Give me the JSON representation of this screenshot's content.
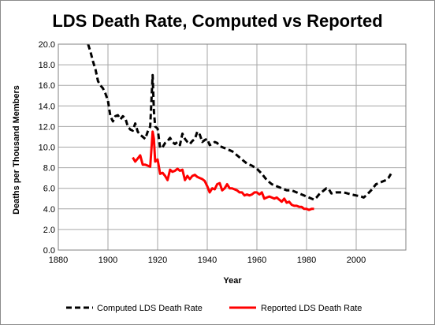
{
  "chart_data": {
    "type": "line",
    "title": "LDS Death Rate, Computed vs Reported",
    "xlabel": "Year",
    "ylabel": "Deaths per Thousand  Members",
    "xlim": [
      1880,
      2020
    ],
    "ylim": [
      0,
      20
    ],
    "x_ticks": [
      "1880",
      "1900",
      "1920",
      "1940",
      "1960",
      "1980",
      "2000"
    ],
    "y_ticks": [
      "0.0",
      "2.0",
      "4.0",
      "6.0",
      "8.0",
      "10.0",
      "12.0",
      "14.0",
      "16.0",
      "18.0",
      "20.0"
    ],
    "grid": "both",
    "legend_position": "bottom",
    "series": [
      {
        "name": "Computed LDS Death Rate",
        "color": "#000000",
        "style": "dashed",
        "points": [
          [
            1892,
            20.0
          ],
          [
            1893,
            19.2
          ],
          [
            1894,
            18.3
          ],
          [
            1895,
            17.5
          ],
          [
            1896,
            16.4
          ],
          [
            1897,
            16.0
          ],
          [
            1898,
            15.7
          ],
          [
            1899,
            15.2
          ],
          [
            1900,
            14.5
          ],
          [
            1901,
            13.0
          ],
          [
            1902,
            12.5
          ],
          [
            1903,
            13.0
          ],
          [
            1904,
            13.1
          ],
          [
            1905,
            12.7
          ],
          [
            1906,
            13.0
          ],
          [
            1907,
            12.8
          ],
          [
            1908,
            12.0
          ],
          [
            1909,
            11.7
          ],
          [
            1910,
            11.6
          ],
          [
            1911,
            12.3
          ],
          [
            1912,
            11.5
          ],
          [
            1913,
            11.2
          ],
          [
            1914,
            11.0
          ],
          [
            1915,
            10.8
          ],
          [
            1916,
            11.5
          ],
          [
            1917,
            12.0
          ],
          [
            1918,
            17.0
          ],
          [
            1918.5,
            13.5
          ],
          [
            1919,
            12.0
          ],
          [
            1920,
            11.8
          ],
          [
            1921,
            9.9
          ],
          [
            1922,
            10.0
          ],
          [
            1923,
            10.4
          ],
          [
            1924,
            10.6
          ],
          [
            1925,
            10.9
          ],
          [
            1926,
            10.5
          ],
          [
            1927,
            10.3
          ],
          [
            1928,
            10.5
          ],
          [
            1929,
            10.2
          ],
          [
            1930,
            11.3
          ],
          [
            1931,
            10.8
          ],
          [
            1932,
            10.5
          ],
          [
            1933,
            10.3
          ],
          [
            1934,
            10.6
          ],
          [
            1935,
            10.8
          ],
          [
            1936,
            11.5
          ],
          [
            1937,
            11.2
          ],
          [
            1938,
            10.5
          ],
          [
            1939,
            10.7
          ],
          [
            1940,
            10.8
          ],
          [
            1941,
            10.2
          ],
          [
            1942,
            10.3
          ],
          [
            1943,
            10.5
          ],
          [
            1944,
            10.4
          ],
          [
            1945,
            10.1
          ],
          [
            1946,
            10.0
          ],
          [
            1948,
            9.8
          ],
          [
            1950,
            9.6
          ],
          [
            1952,
            9.2
          ],
          [
            1954,
            8.8
          ],
          [
            1956,
            8.4
          ],
          [
            1958,
            8.2
          ],
          [
            1960,
            7.9
          ],
          [
            1962,
            7.4
          ],
          [
            1964,
            6.8
          ],
          [
            1966,
            6.4
          ],
          [
            1968,
            6.2
          ],
          [
            1970,
            6.0
          ],
          [
            1972,
            5.8
          ],
          [
            1974,
            5.8
          ],
          [
            1976,
            5.6
          ],
          [
            1978,
            5.4
          ],
          [
            1980,
            5.2
          ],
          [
            1982,
            5.0
          ],
          [
            1983,
            4.9
          ],
          [
            1984,
            5.1
          ],
          [
            1985,
            5.4
          ],
          [
            1987,
            5.8
          ],
          [
            1988,
            6.0
          ],
          [
            1989,
            5.9
          ],
          [
            1990,
            5.5
          ],
          [
            1992,
            5.6
          ],
          [
            1995,
            5.6
          ],
          [
            1998,
            5.4
          ],
          [
            2000,
            5.3
          ],
          [
            2002,
            5.2
          ],
          [
            2003,
            5.1
          ],
          [
            2004,
            5.3
          ],
          [
            2006,
            5.8
          ],
          [
            2008,
            6.4
          ],
          [
            2010,
            6.6
          ],
          [
            2012,
            6.8
          ],
          [
            2013,
            7.0
          ],
          [
            2014,
            7.4
          ]
        ]
      },
      {
        "name": "Reported LDS Death Rate",
        "color": "#ff0000",
        "style": "solid",
        "points": [
          [
            1910,
            9.0
          ],
          [
            1911,
            8.6
          ],
          [
            1912,
            8.9
          ],
          [
            1913,
            9.2
          ],
          [
            1914,
            8.3
          ],
          [
            1915,
            8.3
          ],
          [
            1916,
            8.2
          ],
          [
            1917,
            8.1
          ],
          [
            1918,
            11.5
          ],
          [
            1918.5,
            10.8
          ],
          [
            1919,
            8.6
          ],
          [
            1920,
            8.8
          ],
          [
            1921,
            7.4
          ],
          [
            1922,
            7.5
          ],
          [
            1923,
            7.2
          ],
          [
            1924,
            6.8
          ],
          [
            1925,
            7.8
          ],
          [
            1926,
            7.6
          ],
          [
            1927,
            7.7
          ],
          [
            1928,
            7.9
          ],
          [
            1929,
            7.7
          ],
          [
            1930,
            7.8
          ],
          [
            1931,
            6.8
          ],
          [
            1932,
            7.2
          ],
          [
            1933,
            6.9
          ],
          [
            1934,
            7.2
          ],
          [
            1935,
            7.3
          ],
          [
            1936,
            7.1
          ],
          [
            1937,
            7.0
          ],
          [
            1938,
            6.9
          ],
          [
            1939,
            6.7
          ],
          [
            1940,
            6.2
          ],
          [
            1941,
            5.6
          ],
          [
            1942,
            6.0
          ],
          [
            1943,
            5.9
          ],
          [
            1944,
            6.4
          ],
          [
            1945,
            6.5
          ],
          [
            1946,
            5.8
          ],
          [
            1947,
            6.0
          ],
          [
            1948,
            6.4
          ],
          [
            1949,
            6.0
          ],
          [
            1950,
            6.0
          ],
          [
            1951,
            5.9
          ],
          [
            1952,
            5.8
          ],
          [
            1953,
            5.6
          ],
          [
            1954,
            5.6
          ],
          [
            1955,
            5.3
          ],
          [
            1956,
            5.4
          ],
          [
            1957,
            5.3
          ],
          [
            1958,
            5.4
          ],
          [
            1959,
            5.6
          ],
          [
            1960,
            5.6
          ],
          [
            1961,
            5.4
          ],
          [
            1962,
            5.6
          ],
          [
            1963,
            5.0
          ],
          [
            1964,
            5.1
          ],
          [
            1965,
            5.2
          ],
          [
            1966,
            5.1
          ],
          [
            1967,
            5.0
          ],
          [
            1968,
            5.1
          ],
          [
            1969,
            4.9
          ],
          [
            1970,
            4.7
          ],
          [
            1971,
            5.0
          ],
          [
            1972,
            4.6
          ],
          [
            1973,
            4.7
          ],
          [
            1974,
            4.4
          ],
          [
            1975,
            4.3
          ],
          [
            1976,
            4.3
          ],
          [
            1977,
            4.2
          ],
          [
            1978,
            4.2
          ],
          [
            1979,
            4.0
          ],
          [
            1980,
            4.0
          ],
          [
            1981,
            3.9
          ],
          [
            1982,
            4.0
          ],
          [
            1983,
            4.0
          ]
        ]
      }
    ]
  }
}
